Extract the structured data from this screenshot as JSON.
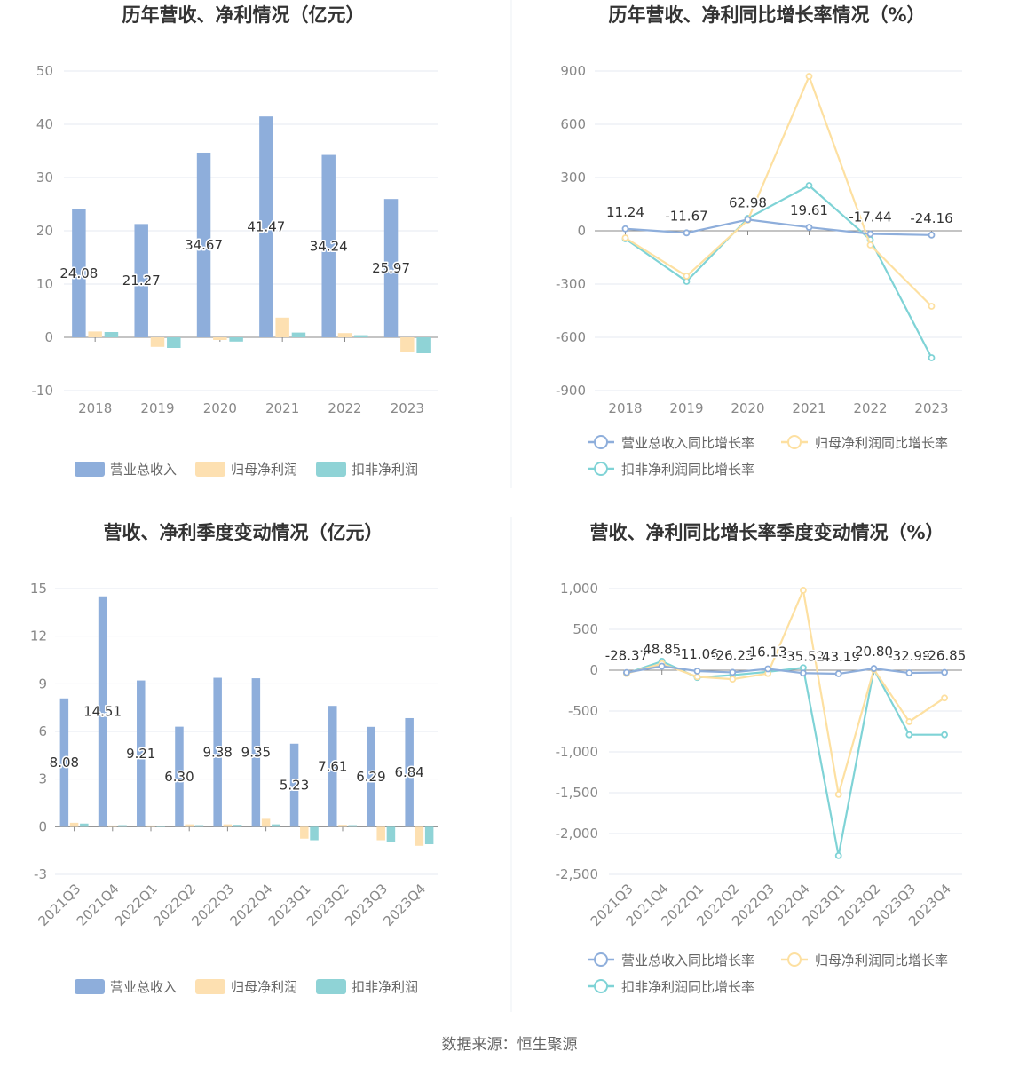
{
  "chart_data": [
    {
      "type": "bar",
      "title": "历年营收、净利情况（亿元）",
      "categories": [
        "2018",
        "2019",
        "2020",
        "2021",
        "2022",
        "2023"
      ],
      "ylim": [
        -10,
        50
      ],
      "yticks": [
        50,
        40,
        30,
        20,
        10,
        0,
        -10
      ],
      "grid": true,
      "legend_position": "bottom",
      "series": [
        {
          "name": "营业总收入",
          "color": "#8eaedb",
          "values": [
            24.08,
            21.27,
            34.67,
            41.47,
            34.24,
            25.97
          ],
          "labels": [
            "24.08",
            "21.27",
            "34.67",
            "41.47",
            "34.24",
            "25.97"
          ]
        },
        {
          "name": "归母净利润",
          "color": "#fde0b1",
          "values": [
            1.1,
            -1.8,
            -0.5,
            3.7,
            0.8,
            -2.8
          ]
        },
        {
          "name": "扣非净利润",
          "color": "#8fd3d6",
          "values": [
            1.0,
            -2.0,
            -0.8,
            0.9,
            0.4,
            -3.0
          ]
        }
      ]
    },
    {
      "type": "line",
      "title": "历年营收、净利同比增长率情况（%）",
      "categories": [
        "2018",
        "2019",
        "2020",
        "2021",
        "2022",
        "2023"
      ],
      "ylim": [
        -900,
        900
      ],
      "yticks": [
        900,
        600,
        300,
        0,
        -300,
        -600,
        -900
      ],
      "ytick_labels": [
        "900",
        "600",
        "300",
        "0",
        "-300",
        "-600",
        "-900"
      ],
      "grid": true,
      "legend_position": "bottom",
      "series": [
        {
          "name": "营业总收入同比增长率",
          "color": "#8eaedb",
          "values": [
            11.24,
            -11.67,
            62.98,
            19.61,
            -17.44,
            -24.16
          ],
          "labels": [
            "11.24",
            "-11.67",
            "62.98",
            "19.61",
            "-17.44",
            "-24.16"
          ]
        },
        {
          "name": "归母净利润同比增长率",
          "color": "#fde0a1",
          "values": [
            -40,
            -255,
            60,
            870,
            -80,
            -425
          ]
        },
        {
          "name": "扣非净利润同比增长率",
          "color": "#7fd3d6",
          "values": [
            -45,
            -285,
            70,
            255,
            -50,
            -715
          ]
        }
      ]
    },
    {
      "type": "bar",
      "title": "营收、净利季度变动情况（亿元）",
      "categories": [
        "2021Q3",
        "2021Q4",
        "2022Q1",
        "2022Q2",
        "2022Q3",
        "2022Q4",
        "2023Q1",
        "2023Q2",
        "2023Q3",
        "2023Q4"
      ],
      "ylim": [
        -3,
        15
      ],
      "yticks": [
        15,
        12,
        9,
        6,
        3,
        0,
        -3
      ],
      "grid": true,
      "legend_position": "bottom",
      "series": [
        {
          "name": "营业总收入",
          "color": "#8eaedb",
          "values": [
            8.08,
            14.51,
            9.21,
            6.3,
            9.38,
            9.35,
            5.23,
            7.61,
            6.29,
            6.84
          ],
          "labels": [
            "8.08",
            "14.51",
            "9.21",
            "6.30",
            "9.38",
            "9.35",
            "5.23",
            "7.61",
            "6.29",
            "6.84"
          ]
        },
        {
          "name": "归母净利润",
          "color": "#fde0b1",
          "values": [
            0.25,
            0.08,
            0.08,
            0.15,
            0.15,
            0.5,
            -0.75,
            0.12,
            -0.85,
            -1.2
          ]
        },
        {
          "name": "扣非净利润",
          "color": "#8fd3d6",
          "values": [
            0.2,
            0.1,
            0.05,
            0.1,
            0.12,
            0.15,
            -0.85,
            0.1,
            -0.95,
            -1.1
          ]
        }
      ]
    },
    {
      "type": "line",
      "title": "营收、净利同比增长率季度变动情况（%）",
      "categories": [
        "2021Q3",
        "2021Q4",
        "2022Q1",
        "2022Q2",
        "2022Q3",
        "2022Q4",
        "2023Q1",
        "2023Q2",
        "2023Q3",
        "2023Q4"
      ],
      "ylim": [
        -2500,
        1000
      ],
      "yticks": [
        1000,
        500,
        0,
        -500,
        -1000,
        -1500,
        -2000,
        -2500
      ],
      "ytick_labels": [
        "1,000",
        "500",
        "0",
        "-500",
        "-1,000",
        "-1,500",
        "-2,000",
        "-2,500"
      ],
      "grid": true,
      "legend_position": "bottom",
      "series": [
        {
          "name": "营业总收入同比增长率",
          "color": "#8eaedb",
          "values": [
            -28.37,
            48.85,
            -11.06,
            -26.23,
            16.13,
            -35.52,
            -43.19,
            20.8,
            -32.98,
            -26.85
          ],
          "labels": [
            "-28.37",
            "48.85",
            "-11.06",
            "-26.23",
            "16.13",
            "-35.52",
            "-43.19",
            "20.80",
            "-32.98",
            "-26.85"
          ]
        },
        {
          "name": "归母净利润同比增长率",
          "color": "#fde0a1",
          "values": [
            -40,
            80,
            -80,
            -110,
            -40,
            980,
            -1520,
            10,
            -630,
            -340
          ]
        },
        {
          "name": "扣非净利润同比增长率",
          "color": "#7fd3d6",
          "values": [
            -40,
            110,
            -90,
            -60,
            -20,
            30,
            -2270,
            10,
            -790,
            -790
          ]
        }
      ]
    }
  ],
  "footer": {
    "source": "数据来源：恒生聚源"
  }
}
